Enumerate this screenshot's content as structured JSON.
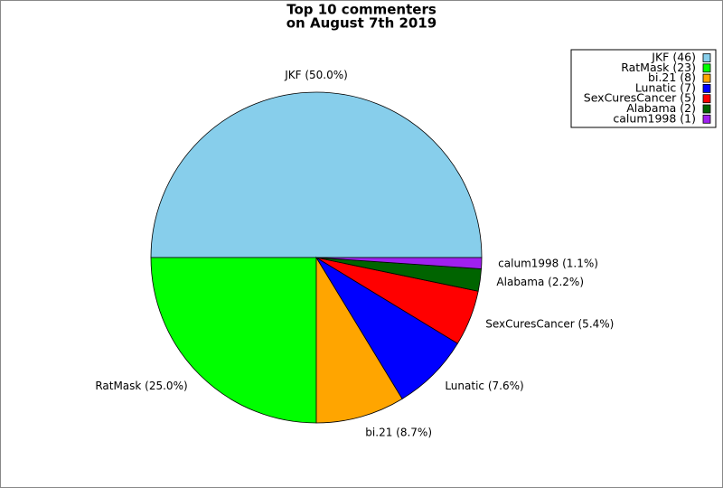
{
  "chart_data": {
    "type": "pie",
    "title": [
      "Top 10 commenters",
      "on August 7th 2019"
    ],
    "categories": [
      "JKF",
      "RatMask",
      "bi.21",
      "Lunatic",
      "SexCuresCancer",
      "Alabama",
      "calum1998"
    ],
    "values": [
      46,
      23,
      8,
      7,
      5,
      2,
      1
    ],
    "value_labels": [
      "JKF (46)",
      "RatMask (23)",
      "bi.21 (8)",
      "Lunatic (7)",
      "SexCuresCancer (5)",
      "Alabama (2)",
      "calum1998 (1)"
    ],
    "percentages": [
      50.0,
      25.0,
      8.7,
      7.6,
      5.4,
      2.2,
      1.1
    ],
    "percentage_labels": [
      "JKF (50.0%)",
      "RatMask (25.0%)",
      "bi.21 (8.7%)",
      "Lunatic (7.6%)",
      "SexCuresCancer (5.4%)",
      "Alabama (2.2%)",
      "calum1998 (1.1%)"
    ],
    "colors": [
      "#87ceeb",
      "#00ff00",
      "#ffa500",
      "#0000ff",
      "#ff0000",
      "#006400",
      "#a020f0"
    ],
    "legend": "upper right"
  }
}
